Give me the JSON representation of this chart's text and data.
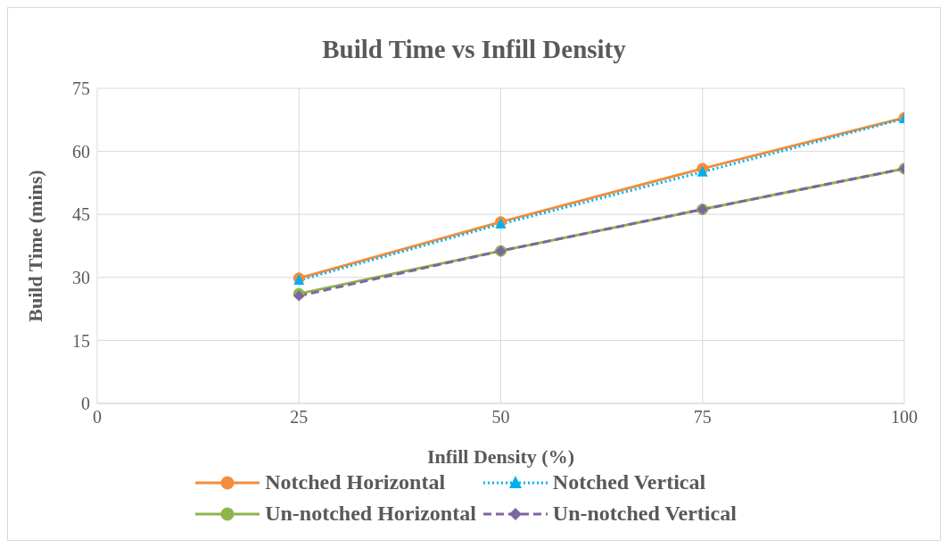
{
  "chart_data": {
    "type": "line",
    "title": "Build Time vs Infill Density",
    "xlabel": "Infill Density (%)",
    "ylabel": "Build Time (mins)",
    "x": [
      25,
      50,
      75,
      100
    ],
    "xlim": [
      0,
      100
    ],
    "xticks": [
      0,
      25,
      50,
      75,
      100
    ],
    "ylim": [
      0,
      75
    ],
    "yticks": [
      0,
      15,
      30,
      45,
      60,
      75
    ],
    "grid": true,
    "legend": "bottom",
    "series": [
      {
        "name": "Notched Horizontal",
        "color": "#f28e3c",
        "marker": "circle",
        "line_style": "solid",
        "values": [
          29.8,
          43.2,
          55.9,
          68.0
        ]
      },
      {
        "name": "Notched Vertical",
        "color": "#00b0f0",
        "marker": "triangle",
        "line_style": "dotted",
        "values": [
          29.3,
          42.7,
          55.1,
          67.8
        ]
      },
      {
        "name": "Un-notched Horizontal",
        "color": "#8db54a",
        "marker": "circle",
        "line_style": "solid",
        "values": [
          26.1,
          36.3,
          46.2,
          55.9
        ]
      },
      {
        "name": "Un-notched Vertical",
        "color": "#8064a2",
        "marker": "diamond",
        "line_style": "dashed",
        "values": [
          25.6,
          36.3,
          46.2,
          55.9
        ]
      }
    ]
  }
}
